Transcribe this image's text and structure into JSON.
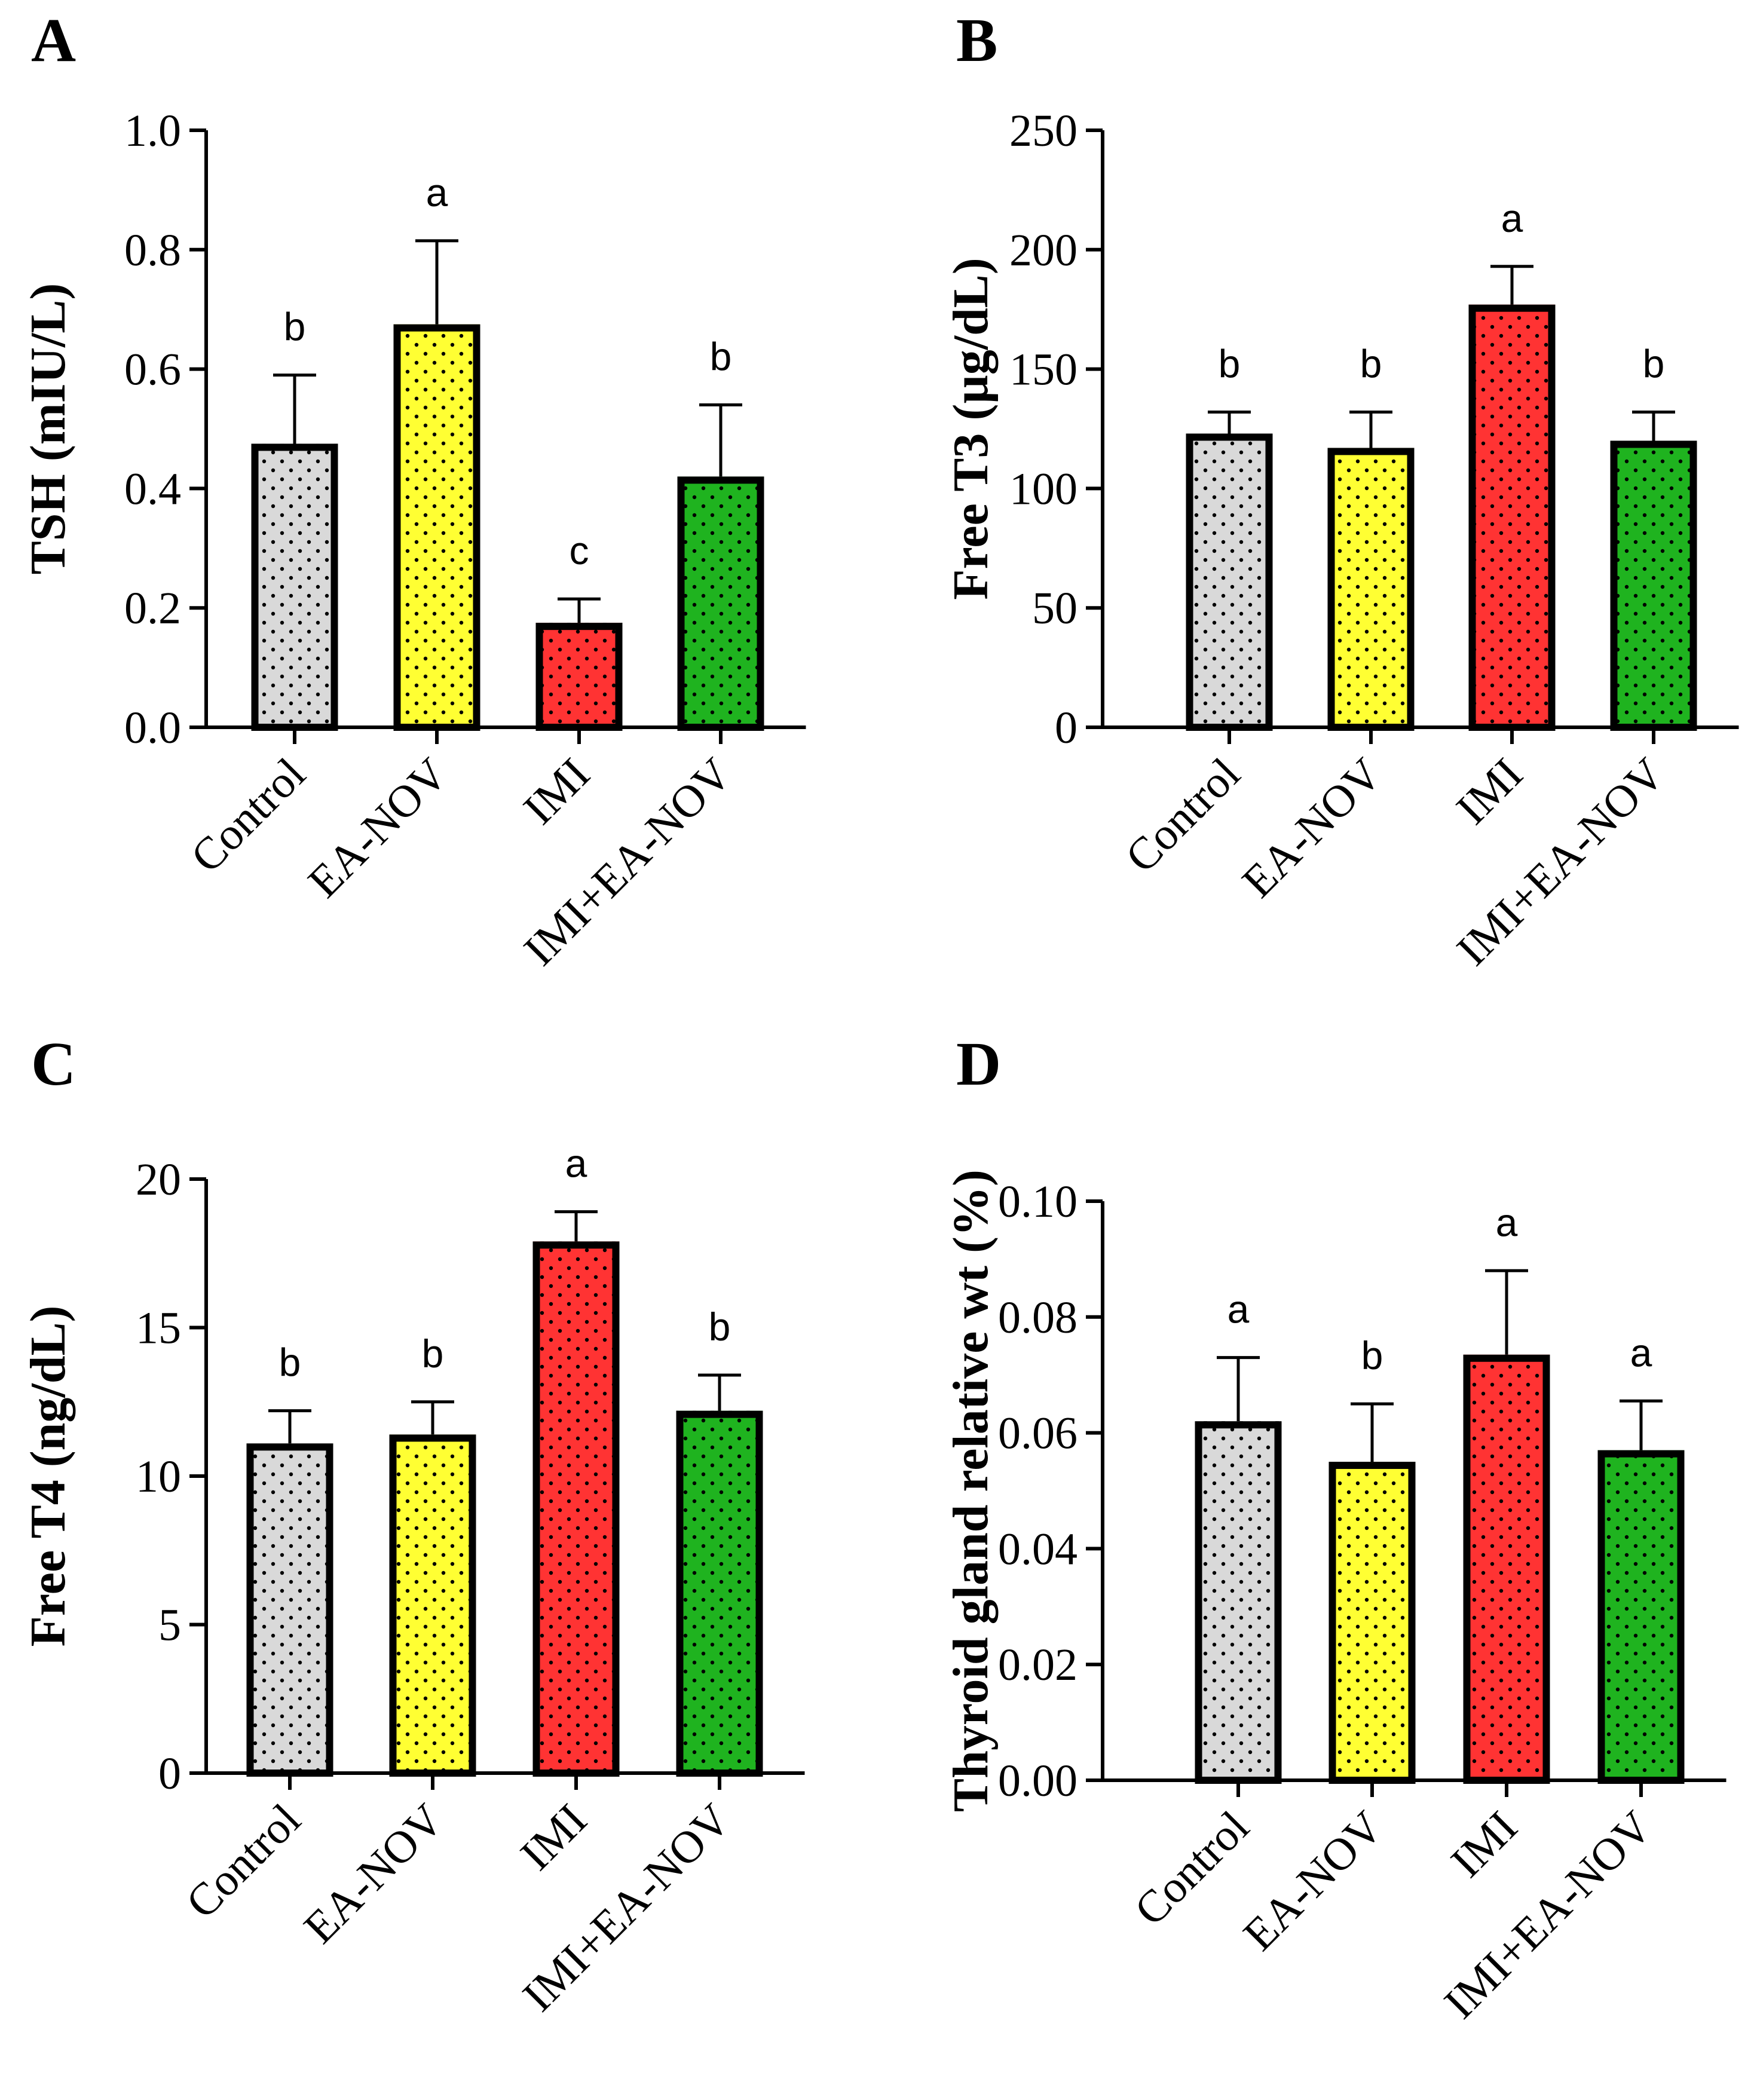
{
  "colors": {
    "Control": "#d9d9d9",
    "EA-NOV": "#ffff33",
    "IMI": "#ff3333",
    "IMI+EA-NOV": "#1fb31f",
    "dots": "#000000",
    "axis": "#000000"
  },
  "chart_data": [
    {
      "panel": "A",
      "type": "bar",
      "ylabel": "TSH (mIU/L)",
      "categories": [
        "Control",
        "EA-NOV",
        "IMI",
        "IMI+EA-NOV"
      ],
      "values": [
        0.475,
        0.675,
        0.175,
        0.42
      ],
      "errors": [
        0.115,
        0.14,
        0.04,
        0.12
      ],
      "significance": [
        "b",
        "a",
        "c",
        "b"
      ],
      "ylim": [
        0,
        1.0
      ],
      "yticks": [
        0,
        0.2,
        0.4,
        0.6,
        0.8,
        1.0
      ],
      "ytick_labels": [
        "0.0",
        "0.2",
        "0.4",
        "0.6",
        "0.8",
        "1.0"
      ],
      "grid": false
    },
    {
      "panel": "B",
      "type": "bar",
      "ylabel": "Free T3 (µg/dL)",
      "categories": [
        "Control",
        "EA-NOV",
        "IMI",
        "IMI+EA-NOV"
      ],
      "values": [
        123,
        117,
        177,
        120
      ],
      "errors": [
        9,
        15,
        16,
        12
      ],
      "significance": [
        "b",
        "b",
        "a",
        "b"
      ],
      "ylim": [
        0,
        250
      ],
      "yticks": [
        0,
        50,
        100,
        150,
        200,
        250
      ],
      "ytick_labels": [
        "0",
        "50",
        "100",
        "150",
        "200",
        "250"
      ],
      "grid": false
    },
    {
      "panel": "C",
      "type": "bar",
      "ylabel": "Free T4 (ng/dL)",
      "categories": [
        "Control",
        "EA-NOV",
        "IMI",
        "IMI+EA-NOV"
      ],
      "values": [
        11.1,
        11.4,
        17.9,
        12.2
      ],
      "errors": [
        1.1,
        1.1,
        1.0,
        1.2
      ],
      "significance": [
        "b",
        "b",
        "a",
        "b"
      ],
      "ylim": [
        0,
        20
      ],
      "yticks": [
        0,
        5,
        10,
        15,
        20
      ],
      "ytick_labels": [
        "0",
        "5",
        "10",
        "15",
        "20"
      ],
      "grid": false
    },
    {
      "panel": "D",
      "type": "bar",
      "ylabel": "Thyroid gland relative wt (%)",
      "categories": [
        "Control",
        "EA-NOV",
        "IMI",
        "IMI+EA-NOV"
      ],
      "values": [
        0.062,
        0.055,
        0.0735,
        0.057
      ],
      "errors": [
        0.011,
        0.01,
        0.0145,
        0.0085
      ],
      "significance": [
        "a",
        "b",
        "a",
        "a"
      ],
      "ylim": [
        0,
        0.1
      ],
      "yticks": [
        0,
        0.02,
        0.04,
        0.06,
        0.08,
        0.1
      ],
      "ytick_labels": [
        "0.00",
        "0.02",
        "0.04",
        "0.06",
        "0.08",
        "0.10"
      ],
      "grid": false
    }
  ]
}
